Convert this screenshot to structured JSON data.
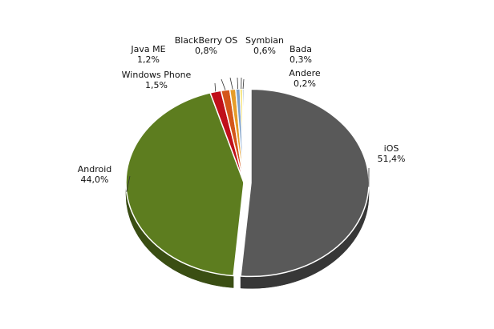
{
  "chart_data": {
    "type": "pie",
    "title": "",
    "slices": [
      {
        "label": "iOS",
        "value": 51.4,
        "value_text": "51,4%",
        "color": "#595959",
        "exploded": true
      },
      {
        "label": "Android",
        "value": 44.0,
        "value_text": "44,0%",
        "color": "#5d7d1f",
        "exploded": false
      },
      {
        "label": "Windows Phone",
        "value": 1.5,
        "value_text": "1,5%",
        "color": "#c0101a",
        "exploded": false
      },
      {
        "label": "Java ME",
        "value": 1.2,
        "value_text": "1,2%",
        "color": "#d4561a",
        "exploded": false
      },
      {
        "label": "BlackBerry OS",
        "value": 0.8,
        "value_text": "0,8%",
        "color": "#e69d2a",
        "exploded": false
      },
      {
        "label": "Symbian",
        "value": 0.6,
        "value_text": "0,6%",
        "color": "#7ea0c8",
        "exploded": false
      },
      {
        "label": "Bada",
        "value": 0.3,
        "value_text": "0,3%",
        "color": "#f0d020",
        "exploded": false
      },
      {
        "label": "Andere",
        "value": 0.2,
        "value_text": "0,2%",
        "color": "#2f5f9e",
        "exploded": false
      }
    ],
    "legend": "none",
    "style": "3d-exploded"
  }
}
